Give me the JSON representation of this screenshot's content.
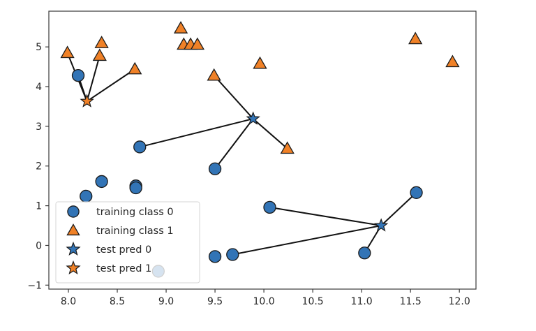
{
  "chart_data": {
    "type": "scatter",
    "title": "",
    "xlabel": "",
    "ylabel": "",
    "xlim": [
      7.8,
      12.17
    ],
    "ylim": [
      -1.1,
      5.9
    ],
    "grid": false,
    "x_ticks": [
      8.0,
      8.5,
      9.0,
      9.5,
      10.0,
      10.5,
      11.0,
      11.5,
      12.0
    ],
    "x_tick_labels": [
      "8.0",
      "8.5",
      "9.0",
      "9.5",
      "10.0",
      "10.5",
      "11.0",
      "11.5",
      "12.0"
    ],
    "y_ticks": [
      -1,
      0,
      1,
      2,
      3,
      4,
      5
    ],
    "y_tick_labels": [
      "−1",
      "0",
      "1",
      "2",
      "3",
      "4",
      "5"
    ],
    "legend_position": "lower-left",
    "colors": {
      "class0": "#3274b6",
      "class1": "#f08127",
      "edge": "#1a1a1a",
      "line": "#111111"
    },
    "series": [
      {
        "name": "training class 0",
        "marker": "circle",
        "color": "#3274b6",
        "points": [
          [
            8.1,
            4.28
          ],
          [
            8.73,
            2.48
          ],
          [
            9.5,
            1.93
          ],
          [
            8.34,
            1.61
          ],
          [
            8.69,
            1.5
          ],
          [
            8.69,
            1.45
          ],
          [
            8.18,
            1.24
          ],
          [
            10.06,
            0.96
          ],
          [
            11.56,
            1.33
          ],
          [
            9.5,
            -0.28
          ],
          [
            9.68,
            -0.23
          ],
          [
            11.03,
            -0.19
          ],
          [
            8.92,
            -0.65
          ]
        ]
      },
      {
        "name": "training class 1",
        "marker": "triangle",
        "color": "#f08127",
        "points": [
          [
            7.99,
            4.85
          ],
          [
            8.34,
            5.1
          ],
          [
            8.32,
            4.78
          ],
          [
            8.68,
            4.44
          ],
          [
            9.15,
            5.47
          ],
          [
            9.18,
            5.06
          ],
          [
            9.25,
            5.06
          ],
          [
            9.32,
            5.06
          ],
          [
            9.49,
            4.28
          ],
          [
            9.96,
            4.58
          ],
          [
            10.24,
            2.44
          ],
          [
            11.55,
            5.2
          ],
          [
            11.93,
            4.62
          ]
        ]
      },
      {
        "name": "test pred 0",
        "marker": "star",
        "color": "#3274b6",
        "points": [
          [
            9.89,
            3.19
          ],
          [
            11.2,
            0.5
          ]
        ]
      },
      {
        "name": "test pred 1",
        "marker": "star",
        "color": "#f08127",
        "points": [
          [
            8.19,
            3.63
          ]
        ]
      }
    ],
    "neighbor_lines": [
      {
        "from": [
          8.19,
          3.63
        ],
        "to": [
          [
            7.99,
            4.85
          ],
          [
            8.32,
            4.78
          ],
          [
            8.68,
            4.44
          ],
          [
            8.1,
            4.28
          ]
        ]
      },
      {
        "from": [
          9.89,
          3.19
        ],
        "to": [
          [
            8.73,
            2.48
          ],
          [
            9.5,
            1.93
          ],
          [
            9.49,
            4.28
          ],
          [
            10.24,
            2.44
          ]
        ]
      },
      {
        "from": [
          11.2,
          0.5
        ],
        "to": [
          [
            10.06,
            0.96
          ],
          [
            11.56,
            1.33
          ],
          [
            11.03,
            -0.19
          ],
          [
            9.68,
            -0.23
          ]
        ]
      }
    ],
    "legend": [
      {
        "label": "training class 0",
        "marker": "circle",
        "color": "#3274b6"
      },
      {
        "label": "training class 1",
        "marker": "triangle",
        "color": "#f08127"
      },
      {
        "label": "test pred 0",
        "marker": "star",
        "color": "#3274b6"
      },
      {
        "label": "test pred 1",
        "marker": "star",
        "color": "#f08127"
      }
    ]
  }
}
